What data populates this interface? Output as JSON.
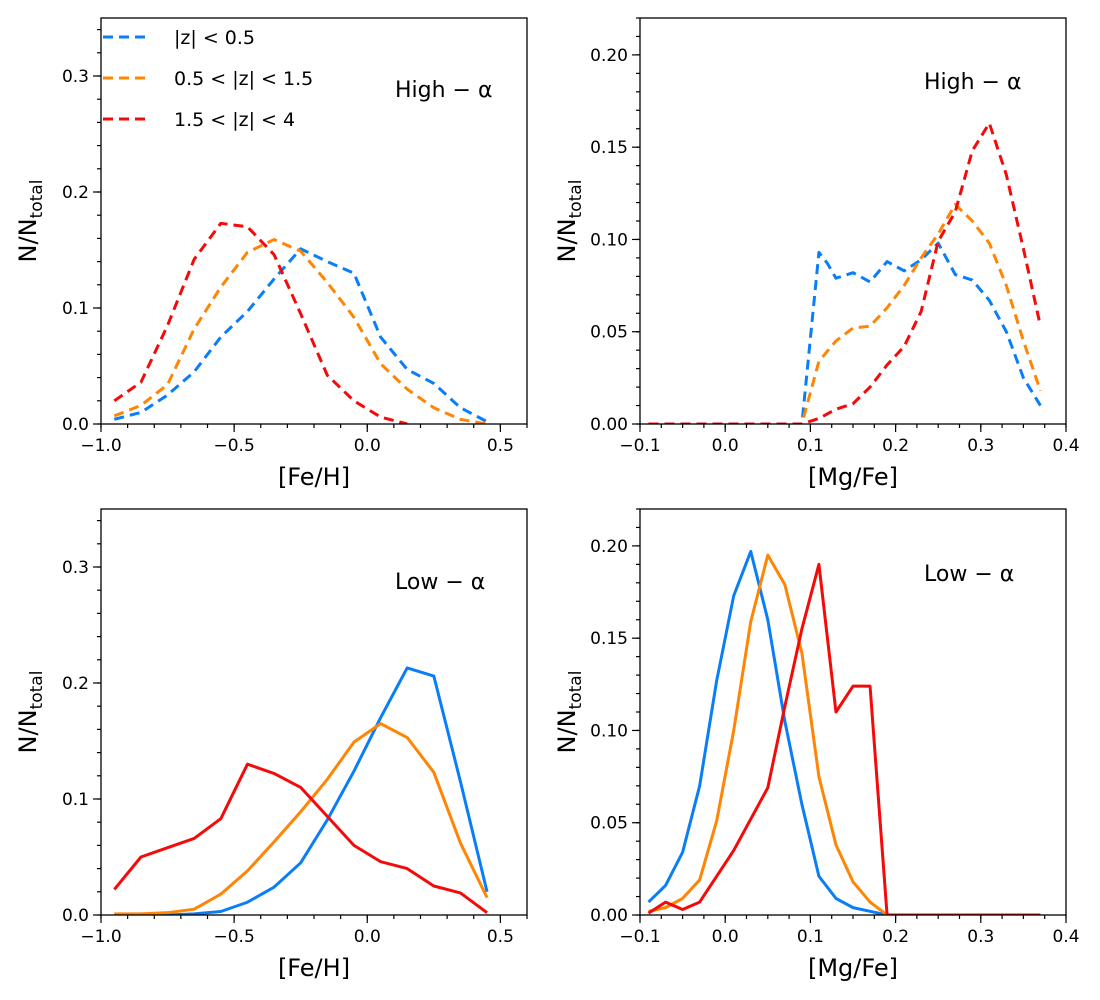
{
  "chart_data": [
    {
      "type": "line",
      "panel": "top-left",
      "tag": "High − α",
      "xlabel": "[Fe/H]",
      "ylabel_main": "N/N",
      "ylabel_sub": "total",
      "xlim": [
        -1.0,
        0.6
      ],
      "ylim": [
        0,
        0.35
      ],
      "xticks": [
        -1.0,
        -0.5,
        0.0,
        0.5
      ],
      "xtick_labels": [
        "−1.0",
        "−0.5",
        "0.0",
        "0.5"
      ],
      "yticks": [
        0.0,
        0.1,
        0.2,
        0.3
      ],
      "ytick_labels": [
        "0.0",
        "0.1",
        "0.2",
        "0.3"
      ],
      "xminor": 0.1,
      "yminor": 0.02,
      "legend": [
        {
          "label": "|z| < 0.5",
          "color": "#0a7ef7",
          "style": "dashed"
        },
        {
          "label": "0.5 < |z| < 1.5",
          "color": "#ff8505",
          "style": "dashed"
        },
        {
          "label": "1.5 < |z| < 4",
          "color": "#f50a0a",
          "style": "dashed"
        }
      ],
      "series": [
        {
          "name": "|z| < 0.5",
          "color": "#0a7ef7",
          "style": "dashed",
          "x": [
            -0.95,
            -0.85,
            -0.75,
            -0.65,
            -0.55,
            -0.45,
            -0.35,
            -0.25,
            -0.15,
            -0.05,
            0.05,
            0.15,
            0.25,
            0.35,
            0.45
          ],
          "y": [
            0.004,
            0.01,
            0.025,
            0.045,
            0.075,
            0.097,
            0.125,
            0.151,
            0.14,
            0.13,
            0.075,
            0.047,
            0.035,
            0.014,
            0.002
          ]
        },
        {
          "name": "0.5 < |z| < 1.5",
          "color": "#ff8505",
          "style": "dashed",
          "x": [
            -0.95,
            -0.85,
            -0.75,
            -0.65,
            -0.55,
            -0.45,
            -0.35,
            -0.25,
            -0.15,
            -0.05,
            0.05,
            0.15,
            0.25,
            0.35,
            0.45
          ],
          "y": [
            0.007,
            0.016,
            0.034,
            0.082,
            0.118,
            0.148,
            0.159,
            0.149,
            0.122,
            0.092,
            0.052,
            0.03,
            0.014,
            0.004,
            0.0
          ]
        },
        {
          "name": "1.5 < |z| < 4",
          "color": "#f50a0a",
          "style": "dashed",
          "x": [
            -0.95,
            -0.85,
            -0.75,
            -0.65,
            -0.55,
            -0.45,
            -0.35,
            -0.25,
            -0.15,
            -0.05,
            0.05,
            0.15
          ],
          "y": [
            0.02,
            0.036,
            0.085,
            0.142,
            0.173,
            0.17,
            0.146,
            0.095,
            0.042,
            0.02,
            0.006,
            0.0
          ]
        }
      ]
    },
    {
      "type": "line",
      "panel": "top-right",
      "tag": "High − α",
      "xlabel": "[Mg/Fe]",
      "ylabel_main": "N/N",
      "ylabel_sub": "total",
      "xlim": [
        -0.1,
        0.4
      ],
      "ylim": [
        0,
        0.22
      ],
      "xticks": [
        -0.1,
        0.0,
        0.1,
        0.2,
        0.3,
        0.4
      ],
      "xtick_labels": [
        "−0.1",
        "0.0",
        "0.1",
        "0.2",
        "0.3",
        "0.4"
      ],
      "yticks": [
        0.0,
        0.05,
        0.1,
        0.15,
        0.2
      ],
      "ytick_labels": [
        "0.00",
        "0.05",
        "0.10",
        "0.15",
        "0.20"
      ],
      "xminor": 0.025,
      "yminor": 0.01,
      "series": [
        {
          "name": "|z| < 0.5",
          "color": "#0a7ef7",
          "style": "dashed",
          "x": [
            -0.09,
            0.09,
            0.11,
            0.12,
            0.13,
            0.15,
            0.17,
            0.19,
            0.21,
            0.23,
            0.25,
            0.27,
            0.29,
            0.31,
            0.33,
            0.35,
            0.37
          ],
          "y": [
            0.0,
            0.0,
            0.093,
            0.087,
            0.079,
            0.082,
            0.077,
            0.088,
            0.083,
            0.089,
            0.098,
            0.081,
            0.078,
            0.067,
            0.05,
            0.025,
            0.01
          ]
        },
        {
          "name": "0.5 < |z| < 1.5",
          "color": "#ff8505",
          "style": "dashed",
          "x": [
            -0.09,
            0.09,
            0.11,
            0.13,
            0.15,
            0.17,
            0.19,
            0.21,
            0.23,
            0.25,
            0.27,
            0.29,
            0.31,
            0.33,
            0.35,
            0.37
          ],
          "y": [
            0.0,
            0.0,
            0.034,
            0.045,
            0.052,
            0.053,
            0.063,
            0.075,
            0.09,
            0.103,
            0.119,
            0.11,
            0.098,
            0.075,
            0.045,
            0.018
          ]
        },
        {
          "name": "1.5 < |z| < 4",
          "color": "#f50a0a",
          "style": "dashed",
          "x": [
            -0.09,
            0.09,
            0.11,
            0.13,
            0.15,
            0.17,
            0.19,
            0.21,
            0.23,
            0.25,
            0.27,
            0.29,
            0.31,
            0.33,
            0.35,
            0.37
          ],
          "y": [
            0.0,
            0.0,
            0.003,
            0.008,
            0.011,
            0.02,
            0.032,
            0.042,
            0.061,
            0.099,
            0.115,
            0.148,
            0.163,
            0.135,
            0.095,
            0.053
          ]
        }
      ]
    },
    {
      "type": "line",
      "panel": "bottom-left",
      "tag": "Low − α",
      "xlabel": "[Fe/H]",
      "ylabel_main": "N/N",
      "ylabel_sub": "total",
      "xlim": [
        -1.0,
        0.6
      ],
      "ylim": [
        0,
        0.35
      ],
      "xticks": [
        -1.0,
        -0.5,
        0.0,
        0.5
      ],
      "xtick_labels": [
        "−1.0",
        "−0.5",
        "0.0",
        "0.5"
      ],
      "yticks": [
        0.0,
        0.1,
        0.2,
        0.3
      ],
      "ytick_labels": [
        "0.0",
        "0.1",
        "0.2",
        "0.3"
      ],
      "xminor": 0.1,
      "yminor": 0.02,
      "series": [
        {
          "name": "|z| < 0.5",
          "color": "#0a7ef7",
          "style": "solid",
          "x": [
            -0.95,
            -0.85,
            -0.75,
            -0.65,
            -0.55,
            -0.45,
            -0.35,
            -0.25,
            -0.15,
            -0.05,
            0.05,
            0.15,
            0.25,
            0.35,
            0.45
          ],
          "y": [
            0.0,
            0.0,
            0.0,
            0.001,
            0.003,
            0.011,
            0.024,
            0.045,
            0.082,
            0.124,
            0.17,
            0.213,
            0.206,
            0.115,
            0.02
          ]
        },
        {
          "name": "0.5 < |z| < 1.5",
          "color": "#ff8505",
          "style": "solid",
          "x": [
            -0.95,
            -0.85,
            -0.75,
            -0.65,
            -0.55,
            -0.45,
            -0.35,
            -0.25,
            -0.15,
            -0.05,
            0.05,
            0.15,
            0.25,
            0.35,
            0.45
          ],
          "y": [
            0.001,
            0.001,
            0.002,
            0.005,
            0.018,
            0.038,
            0.063,
            0.089,
            0.117,
            0.149,
            0.165,
            0.153,
            0.123,
            0.062,
            0.015
          ]
        },
        {
          "name": "1.5 < |z| < 4",
          "color": "#f50a0a",
          "style": "solid",
          "x": [
            -0.95,
            -0.85,
            -0.75,
            -0.65,
            -0.55,
            -0.45,
            -0.35,
            -0.25,
            -0.15,
            -0.05,
            0.05,
            0.15,
            0.25,
            0.35,
            0.45
          ],
          "y": [
            0.022,
            0.05,
            0.058,
            0.066,
            0.083,
            0.13,
            0.122,
            0.11,
            0.085,
            0.06,
            0.046,
            0.04,
            0.025,
            0.019,
            0.002
          ]
        }
      ]
    },
    {
      "type": "line",
      "panel": "bottom-right",
      "tag": "Low − α",
      "xlabel": "[Mg/Fe]",
      "ylabel_main": "N/N",
      "ylabel_sub": "total",
      "xlim": [
        -0.1,
        0.4
      ],
      "ylim": [
        0,
        0.22
      ],
      "xticks": [
        -0.1,
        0.0,
        0.1,
        0.2,
        0.3,
        0.4
      ],
      "xtick_labels": [
        "−0.1",
        "0.0",
        "0.1",
        "0.2",
        "0.3",
        "0.4"
      ],
      "yticks": [
        0.0,
        0.05,
        0.1,
        0.15,
        0.2
      ],
      "ytick_labels": [
        "0.00",
        "0.05",
        "0.10",
        "0.15",
        "0.20"
      ],
      "xminor": 0.025,
      "yminor": 0.01,
      "series": [
        {
          "name": "|z| < 0.5",
          "color": "#0a7ef7",
          "style": "solid",
          "x": [
            -0.09,
            -0.07,
            -0.05,
            -0.03,
            -0.01,
            0.01,
            0.03,
            0.05,
            0.07,
            0.09,
            0.11,
            0.13,
            0.15,
            0.17,
            0.19,
            0.21
          ],
          "y": [
            0.007,
            0.016,
            0.034,
            0.07,
            0.127,
            0.173,
            0.197,
            0.16,
            0.105,
            0.06,
            0.021,
            0.009,
            0.004,
            0.002,
            0.0,
            0.0
          ]
        },
        {
          "name": "0.5 < |z| < 1.5",
          "color": "#ff8505",
          "style": "solid",
          "x": [
            -0.09,
            -0.07,
            -0.05,
            -0.03,
            -0.01,
            0.01,
            0.03,
            0.05,
            0.07,
            0.09,
            0.11,
            0.13,
            0.15,
            0.17,
            0.19,
            0.21
          ],
          "y": [
            0.002,
            0.004,
            0.009,
            0.019,
            0.051,
            0.1,
            0.159,
            0.195,
            0.179,
            0.142,
            0.075,
            0.038,
            0.018,
            0.007,
            0.0,
            0.0
          ]
        },
        {
          "name": "1.5 < |z| < 4",
          "color": "#f50a0a",
          "style": "solid",
          "x": [
            -0.09,
            -0.07,
            -0.05,
            -0.03,
            0.01,
            0.05,
            0.07,
            0.09,
            0.11,
            0.13,
            0.15,
            0.17,
            0.19,
            0.23,
            0.27,
            0.31,
            0.35,
            0.37
          ],
          "y": [
            0.001,
            0.007,
            0.003,
            0.007,
            0.035,
            0.069,
            0.113,
            0.155,
            0.19,
            0.11,
            0.124,
            0.124,
            0.0,
            0.0,
            0.0,
            0.0,
            0.0,
            0.0
          ]
        }
      ]
    }
  ]
}
